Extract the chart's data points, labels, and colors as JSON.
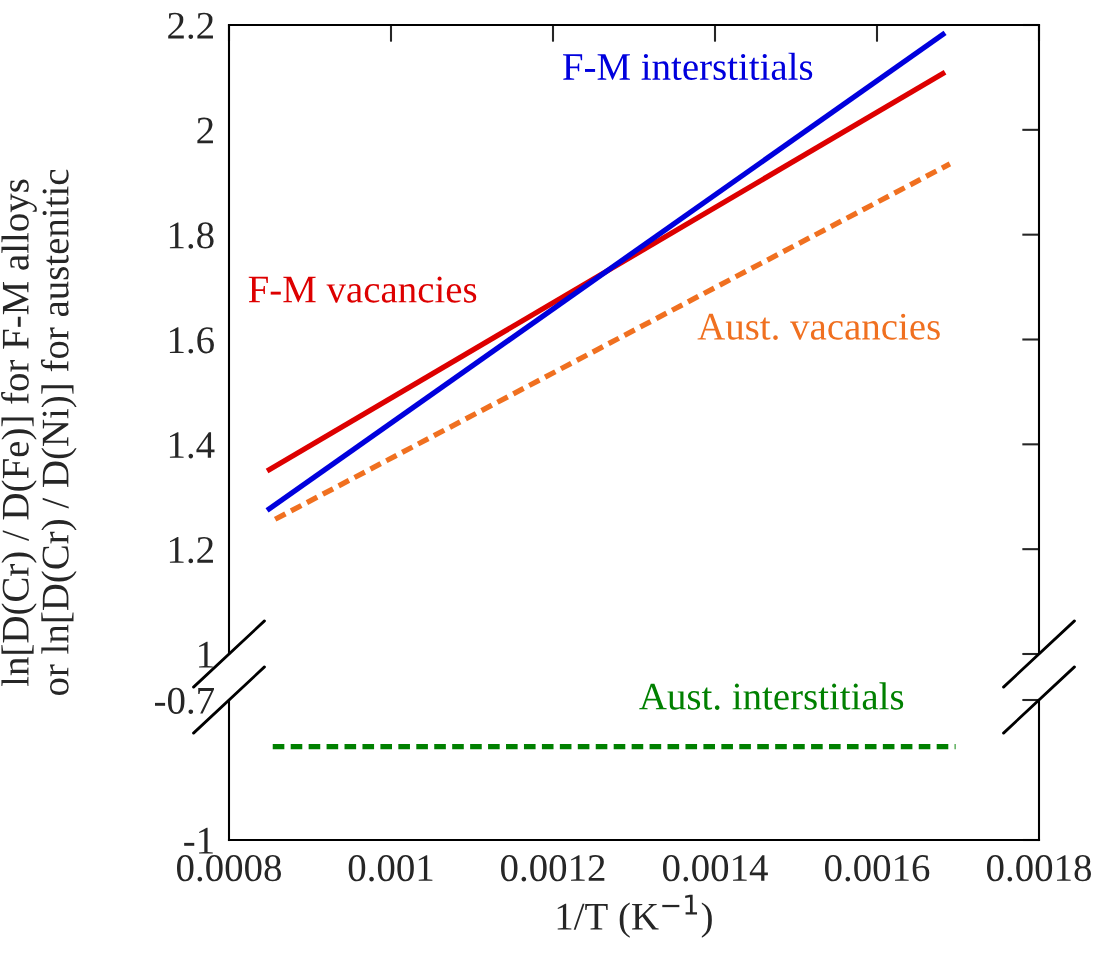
{
  "chart_data": [
    {
      "type": "line",
      "ylabel": "ln[D(Cr) / D(Fe)] for F-M alloys\nor ln[D(Cr) / D(Ni)] for austenitic",
      "xlim": [
        0.0008,
        0.0018
      ],
      "xticks": [
        0.0008,
        0.001,
        0.0012,
        0.0014,
        0.0016,
        0.0018
      ],
      "ylim": [
        1,
        2.2
      ],
      "yticks": [
        1,
        1.2,
        1.4,
        1.6,
        1.8,
        2,
        2.2
      ],
      "tick_labels": "y",
      "series": [
        {
          "name": "F-M vacancies",
          "color": "#dd0000",
          "x": [
            0.000847,
            0.001684
          ],
          "values": [
            1.349,
            2.11
          ],
          "line_style": "solid"
        },
        {
          "name": "F-M interstitials",
          "color": "#0000dd",
          "x": [
            0.000847,
            0.001684
          ],
          "values": [
            1.274,
            2.185
          ],
          "line_style": "solid"
        },
        {
          "name": "Aust. vacancies",
          "color": "#f07020",
          "x": [
            0.000857,
            0.00169
          ],
          "values": [
            1.257,
            1.935
          ],
          "line_style": "dashed"
        }
      ]
    },
    {
      "type": "line",
      "xlabel": "1/T (K$^{−1}$)",
      "xlim": [
        0.0008,
        0.0018
      ],
      "xticks": [
        0.0008,
        0.001,
        0.0012,
        0.0014,
        0.0016,
        0.0018
      ],
      "ylim": [
        -1,
        -0.7
      ],
      "yticks": [
        -1,
        -0.7
      ],
      "series": [
        {
          "name": "Aust. interstitials",
          "color": "#008000",
          "x": [
            0.000854,
            0.001697
          ],
          "values": [
            -0.8,
            -0.8
          ],
          "line_style": "dashed"
        }
      ]
    }
  ]
}
